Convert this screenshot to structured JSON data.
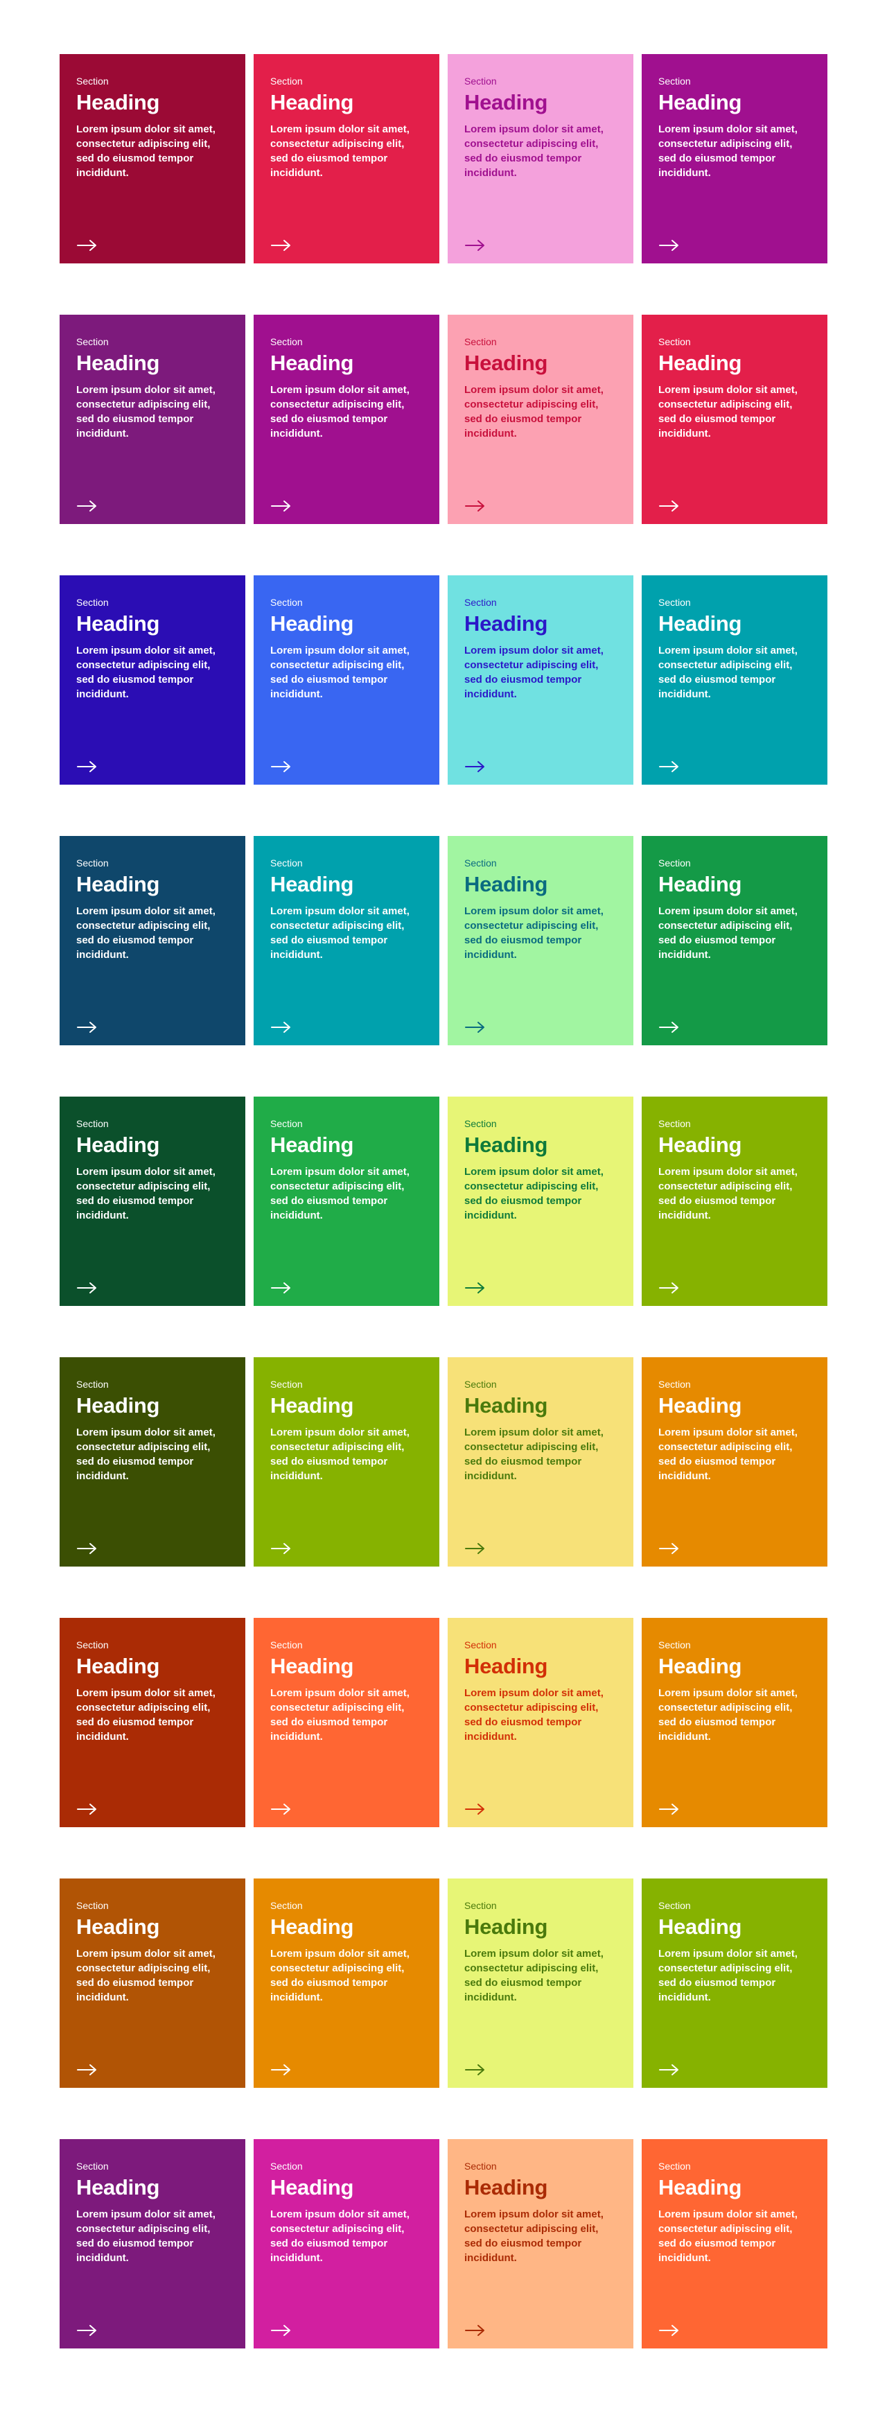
{
  "cards": [
    {
      "eyebrow": "Section",
      "heading": "Heading",
      "body": "Lorem ipsum dolor sit amet, consectetur adipiscing elit, sed do eiusmod tempor incididunt.",
      "bg": "#9b0a35",
      "eyebrow_color": "#ffffff",
      "heading_color": "#ffffff",
      "body_color": "#ffffff",
      "arrow_color": "#ffffff",
      "icon": "arrow-right-icon"
    },
    {
      "eyebrow": "Section",
      "heading": "Heading",
      "body": "Lorem ipsum dolor sit amet, consectetur adipiscing elit, sed do eiusmod tempor incididunt.",
      "bg": "#e31f4a",
      "eyebrow_color": "#ffffff",
      "heading_color": "#ffffff",
      "body_color": "#ffffff",
      "arrow_color": "#ffffff",
      "icon": "arrow-right-icon"
    },
    {
      "eyebrow": "Section",
      "heading": "Heading",
      "body": "Lorem ipsum dolor sit amet, consectetur adipiscing elit, sed do eiusmod tempor incididunt.",
      "bg": "#f4a1dc",
      "eyebrow_color": "#a0108f",
      "heading_color": "#a0108f",
      "body_color": "#a0108f",
      "arrow_color": "#a0108f",
      "icon": "arrow-right-icon"
    },
    {
      "eyebrow": "Section",
      "heading": "Heading",
      "body": "Lorem ipsum dolor sit amet, consectetur adipiscing elit, sed do eiusmod tempor incididunt.",
      "bg": "#a0108f",
      "eyebrow_color": "#ffffff",
      "heading_color": "#ffffff",
      "body_color": "#ffffff",
      "arrow_color": "#ffffff",
      "icon": "arrow-right-icon"
    },
    {
      "eyebrow": "Section",
      "heading": "Heading",
      "body": "Lorem ipsum dolor sit amet, consectetur adipiscing elit, sed do eiusmod tempor incididunt.",
      "bg": "#7d1a7c",
      "eyebrow_color": "#ffffff",
      "heading_color": "#ffffff",
      "body_color": "#ffffff",
      "arrow_color": "#ffffff",
      "icon": "arrow-right-icon"
    },
    {
      "eyebrow": "Section",
      "heading": "Heading",
      "body": "Lorem ipsum dolor sit amet, consectetur adipiscing elit, sed do eiusmod tempor incididunt.",
      "bg": "#a0108f",
      "eyebrow_color": "#ffffff",
      "heading_color": "#ffffff",
      "body_color": "#ffffff",
      "arrow_color": "#ffffff",
      "icon": "arrow-right-icon"
    },
    {
      "eyebrow": "Section",
      "heading": "Heading",
      "body": "Lorem ipsum dolor sit amet, consectetur adipiscing elit, sed do eiusmod tempor incididunt.",
      "bg": "#fca1b2",
      "eyebrow_color": "#c8103c",
      "heading_color": "#c8103c",
      "body_color": "#c8103c",
      "arrow_color": "#c8103c",
      "icon": "arrow-right-icon"
    },
    {
      "eyebrow": "Section",
      "heading": "Heading",
      "body": "Lorem ipsum dolor sit amet, consectetur adipiscing elit, sed do eiusmod tempor incididunt.",
      "bg": "#e31f4a",
      "eyebrow_color": "#ffffff",
      "heading_color": "#ffffff",
      "body_color": "#ffffff",
      "arrow_color": "#ffffff",
      "icon": "arrow-right-icon"
    },
    {
      "eyebrow": "Section",
      "heading": "Heading",
      "body": "Lorem ipsum dolor sit amet, consectetur adipiscing elit, sed do eiusmod tempor incididunt.",
      "bg": "#2b0db4",
      "eyebrow_color": "#ffffff",
      "heading_color": "#ffffff",
      "body_color": "#ffffff",
      "arrow_color": "#ffffff",
      "icon": "arrow-right-icon"
    },
    {
      "eyebrow": "Section",
      "heading": "Heading",
      "body": "Lorem ipsum dolor sit amet, consectetur adipiscing elit, sed do eiusmod tempor incididunt.",
      "bg": "#3966f2",
      "eyebrow_color": "#ffffff",
      "heading_color": "#ffffff",
      "body_color": "#ffffff",
      "arrow_color": "#ffffff",
      "icon": "arrow-right-icon"
    },
    {
      "eyebrow": "Section",
      "heading": "Heading",
      "body": "Lorem ipsum dolor sit amet, consectetur adipiscing elit, sed do eiusmod tempor incididunt.",
      "bg": "#70e1e1",
      "eyebrow_color": "#2b18c8",
      "heading_color": "#2b18c8",
      "body_color": "#2b18c8",
      "arrow_color": "#2b18c8",
      "icon": "arrow-right-icon"
    },
    {
      "eyebrow": "Section",
      "heading": "Heading",
      "body": "Lorem ipsum dolor sit amet, consectetur adipiscing elit, sed do eiusmod tempor incididunt.",
      "bg": "#00a1ad",
      "eyebrow_color": "#ffffff",
      "heading_color": "#ffffff",
      "body_color": "#ffffff",
      "arrow_color": "#ffffff",
      "icon": "arrow-right-icon"
    },
    {
      "eyebrow": "Section",
      "heading": "Heading",
      "body": "Lorem ipsum dolor sit amet, consectetur adipiscing elit, sed do eiusmod tempor incididunt.",
      "bg": "#0f476b",
      "eyebrow_color": "#ffffff",
      "heading_color": "#ffffff",
      "body_color": "#ffffff",
      "arrow_color": "#ffffff",
      "icon": "arrow-right-icon"
    },
    {
      "eyebrow": "Section",
      "heading": "Heading",
      "body": "Lorem ipsum dolor sit amet, consectetur adipiscing elit, sed do eiusmod tempor incididunt.",
      "bg": "#00a1ad",
      "eyebrow_color": "#ffffff",
      "heading_color": "#ffffff",
      "body_color": "#ffffff",
      "arrow_color": "#ffffff",
      "icon": "arrow-right-icon"
    },
    {
      "eyebrow": "Section",
      "heading": "Heading",
      "body": "Lorem ipsum dolor sit amet, consectetur adipiscing elit, sed do eiusmod tempor incididunt.",
      "bg": "#a1f5a1",
      "eyebrow_color": "#0a6b80",
      "heading_color": "#0a6b80",
      "body_color": "#0a6b80",
      "arrow_color": "#0a6b80",
      "icon": "arrow-right-icon"
    },
    {
      "eyebrow": "Section",
      "heading": "Heading",
      "body": "Lorem ipsum dolor sit amet, consectetur adipiscing elit, sed do eiusmod tempor incididunt.",
      "bg": "#149a47",
      "eyebrow_color": "#ffffff",
      "heading_color": "#ffffff",
      "body_color": "#ffffff",
      "arrow_color": "#ffffff",
      "icon": "arrow-right-icon"
    },
    {
      "eyebrow": "Section",
      "heading": "Heading",
      "body": "Lorem ipsum dolor sit amet, consectetur adipiscing elit, sed do eiusmod tempor incididunt.",
      "bg": "#0b502b",
      "eyebrow_color": "#ffffff",
      "heading_color": "#ffffff",
      "body_color": "#ffffff",
      "arrow_color": "#ffffff",
      "icon": "arrow-right-icon"
    },
    {
      "eyebrow": "Section",
      "heading": "Heading",
      "body": "Lorem ipsum dolor sit amet, consectetur adipiscing elit, sed do eiusmod tempor incididunt.",
      "bg": "#20ac48",
      "eyebrow_color": "#ffffff",
      "heading_color": "#ffffff",
      "body_color": "#ffffff",
      "arrow_color": "#ffffff",
      "icon": "arrow-right-icon"
    },
    {
      "eyebrow": "Section",
      "heading": "Heading",
      "body": "Lorem ipsum dolor sit amet, consectetur adipiscing elit, sed do eiusmod tempor incididunt.",
      "bg": "#e7f576",
      "eyebrow_color": "#0f7a3a",
      "heading_color": "#0f7a3a",
      "body_color": "#0f7a3a",
      "arrow_color": "#0f7a3a",
      "icon": "arrow-right-icon"
    },
    {
      "eyebrow": "Section",
      "heading": "Heading",
      "body": "Lorem ipsum dolor sit amet, consectetur adipiscing elit, sed do eiusmod tempor incididunt.",
      "bg": "#86b200",
      "eyebrow_color": "#ffffff",
      "heading_color": "#ffffff",
      "body_color": "#ffffff",
      "arrow_color": "#ffffff",
      "icon": "arrow-right-icon"
    },
    {
      "eyebrow": "Section",
      "heading": "Heading",
      "body": "Lorem ipsum dolor sit amet, consectetur adipiscing elit, sed do eiusmod tempor incididunt.",
      "bg": "#3b4f03",
      "eyebrow_color": "#ffffff",
      "heading_color": "#ffffff",
      "body_color": "#ffffff",
      "arrow_color": "#ffffff",
      "icon": "arrow-right-icon"
    },
    {
      "eyebrow": "Section",
      "heading": "Heading",
      "body": "Lorem ipsum dolor sit amet, consectetur adipiscing elit, sed do eiusmod tempor incididunt.",
      "bg": "#86b200",
      "eyebrow_color": "#ffffff",
      "heading_color": "#ffffff",
      "body_color": "#ffffff",
      "arrow_color": "#ffffff",
      "icon": "arrow-right-icon"
    },
    {
      "eyebrow": "Section",
      "heading": "Heading",
      "body": "Lorem ipsum dolor sit amet, consectetur adipiscing elit, sed do eiusmod tempor incididunt.",
      "bg": "#f7e178",
      "eyebrow_color": "#4a7a0c",
      "heading_color": "#4a7a0c",
      "body_color": "#4a7a0c",
      "arrow_color": "#4a7a0c",
      "icon": "arrow-right-icon"
    },
    {
      "eyebrow": "Section",
      "heading": "Heading",
      "body": "Lorem ipsum dolor sit amet, consectetur adipiscing elit, sed do eiusmod tempor incididunt.",
      "bg": "#e68a00",
      "eyebrow_color": "#ffffff",
      "heading_color": "#ffffff",
      "body_color": "#ffffff",
      "arrow_color": "#ffffff",
      "icon": "arrow-right-icon"
    },
    {
      "eyebrow": "Section",
      "heading": "Heading",
      "body": "Lorem ipsum dolor sit amet, consectetur adipiscing elit, sed do eiusmod tempor incididunt.",
      "bg": "#aa2b05",
      "eyebrow_color": "#ffffff",
      "heading_color": "#ffffff",
      "body_color": "#ffffff",
      "arrow_color": "#ffffff",
      "icon": "arrow-right-icon"
    },
    {
      "eyebrow": "Section",
      "heading": "Heading",
      "body": "Lorem ipsum dolor sit amet, consectetur adipiscing elit, sed do eiusmod tempor incididunt.",
      "bg": "#ff6633",
      "eyebrow_color": "#ffffff",
      "heading_color": "#ffffff",
      "body_color": "#ffffff",
      "arrow_color": "#ffffff",
      "icon": "arrow-right-icon"
    },
    {
      "eyebrow": "Section",
      "heading": "Heading",
      "body": "Lorem ipsum dolor sit amet, consectetur adipiscing elit, sed do eiusmod tempor incididunt.",
      "bg": "#f7e178",
      "eyebrow_color": "#d22f06",
      "heading_color": "#d22f06",
      "body_color": "#d22f06",
      "arrow_color": "#d22f06",
      "icon": "arrow-right-icon"
    },
    {
      "eyebrow": "Section",
      "heading": "Heading",
      "body": "Lorem ipsum dolor sit amet, consectetur adipiscing elit, sed do eiusmod tempor incididunt.",
      "bg": "#e68a00",
      "eyebrow_color": "#ffffff",
      "heading_color": "#ffffff",
      "body_color": "#ffffff",
      "arrow_color": "#ffffff",
      "icon": "arrow-right-icon"
    },
    {
      "eyebrow": "Section",
      "heading": "Heading",
      "body": "Lorem ipsum dolor sit amet, consectetur adipiscing elit, sed do eiusmod tempor incididunt.",
      "bg": "#b15405",
      "eyebrow_color": "#ffffff",
      "heading_color": "#ffffff",
      "body_color": "#ffffff",
      "arrow_color": "#ffffff",
      "icon": "arrow-right-icon"
    },
    {
      "eyebrow": "Section",
      "heading": "Heading",
      "body": "Lorem ipsum dolor sit amet, consectetur adipiscing elit, sed do eiusmod tempor incididunt.",
      "bg": "#e68a00",
      "eyebrow_color": "#ffffff",
      "heading_color": "#ffffff",
      "body_color": "#ffffff",
      "arrow_color": "#ffffff",
      "icon": "arrow-right-icon"
    },
    {
      "eyebrow": "Section",
      "heading": "Heading",
      "body": "Lorem ipsum dolor sit amet, consectetur adipiscing elit, sed do eiusmod tempor incididunt.",
      "bg": "#e7f576",
      "eyebrow_color": "#4a7a0c",
      "heading_color": "#4a7a0c",
      "body_color": "#4a7a0c",
      "arrow_color": "#4a7a0c",
      "icon": "arrow-right-icon"
    },
    {
      "eyebrow": "Section",
      "heading": "Heading",
      "body": "Lorem ipsum dolor sit amet, consectetur adipiscing elit, sed do eiusmod tempor incididunt.",
      "bg": "#86b200",
      "eyebrow_color": "#ffffff",
      "heading_color": "#ffffff",
      "body_color": "#ffffff",
      "arrow_color": "#ffffff",
      "icon": "arrow-right-icon"
    },
    {
      "eyebrow": "Section",
      "heading": "Heading",
      "body": "Lorem ipsum dolor sit amet, consectetur adipiscing elit, sed do eiusmod tempor incididunt.",
      "bg": "#7d1a7c",
      "eyebrow_color": "#ffffff",
      "heading_color": "#ffffff",
      "body_color": "#ffffff",
      "arrow_color": "#ffffff",
      "icon": "arrow-right-icon"
    },
    {
      "eyebrow": "Section",
      "heading": "Heading",
      "body": "Lorem ipsum dolor sit amet, consectetur adipiscing elit, sed do eiusmod tempor incididunt.",
      "bg": "#d21fa0",
      "eyebrow_color": "#ffffff",
      "heading_color": "#ffffff",
      "body_color": "#ffffff",
      "arrow_color": "#ffffff",
      "icon": "arrow-right-icon"
    },
    {
      "eyebrow": "Section",
      "heading": "Heading",
      "body": "Lorem ipsum dolor sit amet, consectetur adipiscing elit, sed do eiusmod tempor incididunt.",
      "bg": "#ffb685",
      "eyebrow_color": "#aa2b05",
      "heading_color": "#aa2b05",
      "body_color": "#aa2b05",
      "arrow_color": "#aa2b05",
      "icon": "arrow-right-icon"
    },
    {
      "eyebrow": "Section",
      "heading": "Heading",
      "body": "Lorem ipsum dolor sit amet, consectetur adipiscing elit, sed do eiusmod tempor incididunt.",
      "bg": "#ff6633",
      "eyebrow_color": "#ffffff",
      "heading_color": "#ffffff",
      "body_color": "#ffffff",
      "arrow_color": "#ffffff",
      "icon": "arrow-right-icon"
    }
  ]
}
